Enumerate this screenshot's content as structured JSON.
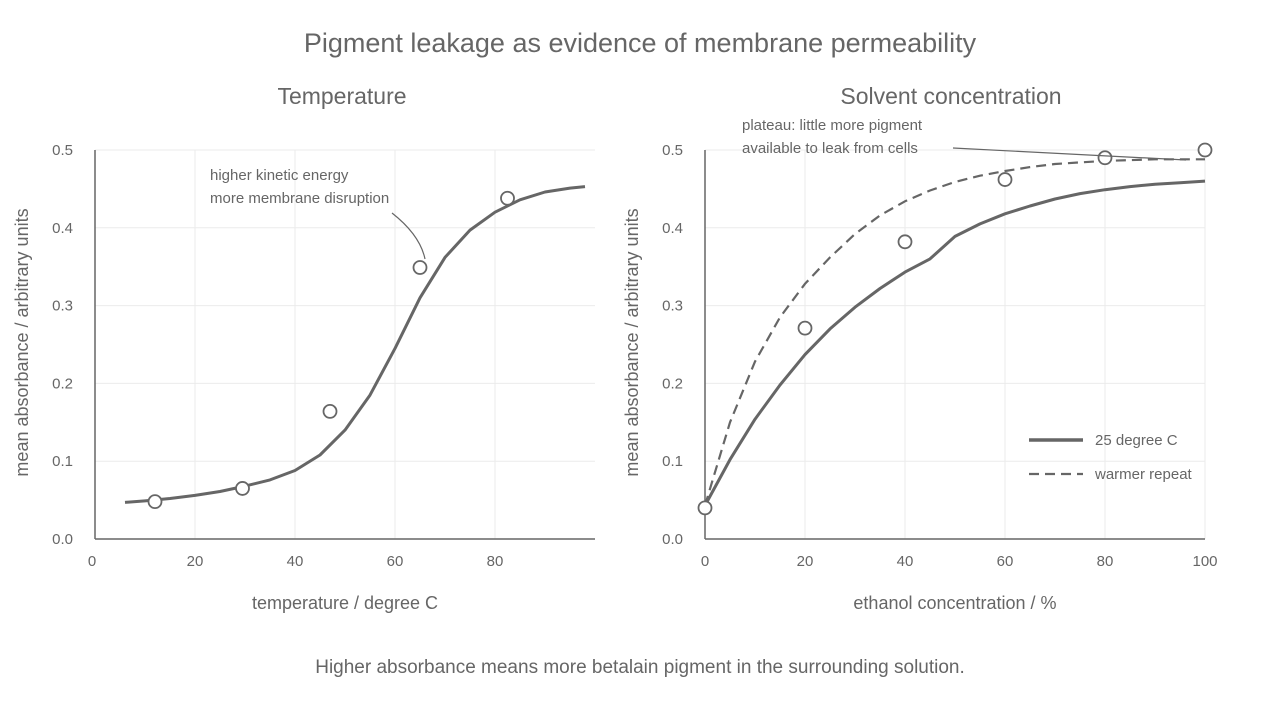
{
  "title": "Pigment leakage as evidence of membrane permeability",
  "footnote": "Higher absorbance means more betalain pigment in the surrounding solution.",
  "colors": {
    "ink": "#666666",
    "grid": "#ebebeb",
    "marker_fill": "#ffffff"
  },
  "chart_data": [
    {
      "type": "line",
      "title": "Temperature",
      "xlabel": "temperature / degree C",
      "ylabel": "mean absorbance / arbitrary units",
      "xlim": [
        0,
        100
      ],
      "ylim": [
        0,
        0.5
      ],
      "xticks": [
        0,
        20,
        40,
        60,
        80
      ],
      "xtick_labels": [
        "0",
        "20",
        "40",
        "60",
        "80"
      ],
      "yticks": [
        0,
        0.1,
        0.2,
        0.3,
        0.4,
        0.5
      ],
      "ytick_labels": [
        "0.0",
        "0.1",
        "0.2",
        "0.3",
        "0.4",
        "0.5"
      ],
      "grid": true,
      "points": {
        "x": [
          12,
          29.5,
          47,
          65,
          82.5
        ],
        "y": [
          0.048,
          0.065,
          0.164,
          0.349,
          0.438
        ]
      },
      "series": [
        {
          "style": "solid",
          "x": [
            6,
            10,
            15,
            20,
            25,
            30,
            35,
            40,
            45,
            50,
            55,
            60,
            65,
            70,
            75,
            80,
            85,
            90,
            95,
            98
          ],
          "y": [
            0.047,
            0.049,
            0.052,
            0.056,
            0.061,
            0.068,
            0.076,
            0.088,
            0.108,
            0.14,
            0.185,
            0.245,
            0.31,
            0.362,
            0.397,
            0.42,
            0.436,
            0.446,
            0.451,
            0.453
          ]
        }
      ],
      "annotations": [
        {
          "lines": [
            "higher kinetic energy",
            "more membrane disruption"
          ]
        }
      ]
    },
    {
      "type": "line",
      "title": "Solvent concentration",
      "xlabel": "ethanol concentration / %",
      "ylabel": "mean absorbance / arbitrary units",
      "xlim": [
        0,
        100
      ],
      "ylim": [
        0,
        0.5
      ],
      "xticks": [
        0,
        20,
        40,
        60,
        80,
        100
      ],
      "xtick_labels": [
        "0",
        "20",
        "40",
        "60",
        "80",
        "100"
      ],
      "yticks": [
        0,
        0.1,
        0.2,
        0.3,
        0.4,
        0.5
      ],
      "ytick_labels": [
        "0.0",
        "0.1",
        "0.2",
        "0.3",
        "0.4",
        "0.5"
      ],
      "grid": true,
      "legend_position": "bottom-right",
      "points": {
        "x": [
          0,
          20,
          40,
          60,
          80,
          100
        ],
        "y": [
          0.04,
          0.271,
          0.382,
          0.462,
          0.49,
          0.5
        ]
      },
      "series": [
        {
          "name": "25 degree C",
          "style": "solid",
          "x": [
            0,
            5,
            10,
            15,
            20,
            25,
            30,
            35,
            40,
            45,
            50,
            55,
            60,
            65,
            70,
            75,
            80,
            85,
            90,
            95,
            100
          ],
          "y": [
            0.043,
            0.102,
            0.154,
            0.198,
            0.237,
            0.27,
            0.298,
            0.322,
            0.343,
            0.36,
            0.389,
            0.405,
            0.418,
            0.428,
            0.437,
            0.444,
            0.449,
            0.453,
            0.456,
            0.458,
            0.46
          ]
        },
        {
          "name": "warmer repeat",
          "style": "dashed",
          "x": [
            0,
            5,
            10,
            15,
            20,
            25,
            30,
            35,
            40,
            45,
            50,
            55,
            60,
            65,
            70,
            75,
            80,
            85,
            90,
            95,
            100
          ],
          "y": [
            0.043,
            0.15,
            0.228,
            0.285,
            0.328,
            0.362,
            0.392,
            0.416,
            0.434,
            0.448,
            0.459,
            0.467,
            0.473,
            0.478,
            0.482,
            0.484,
            0.486,
            0.487,
            0.488,
            0.488,
            0.488
          ]
        }
      ],
      "annotations": [
        {
          "lines": [
            "plateau: little more pigment",
            "available to leak from cells"
          ]
        }
      ]
    }
  ]
}
